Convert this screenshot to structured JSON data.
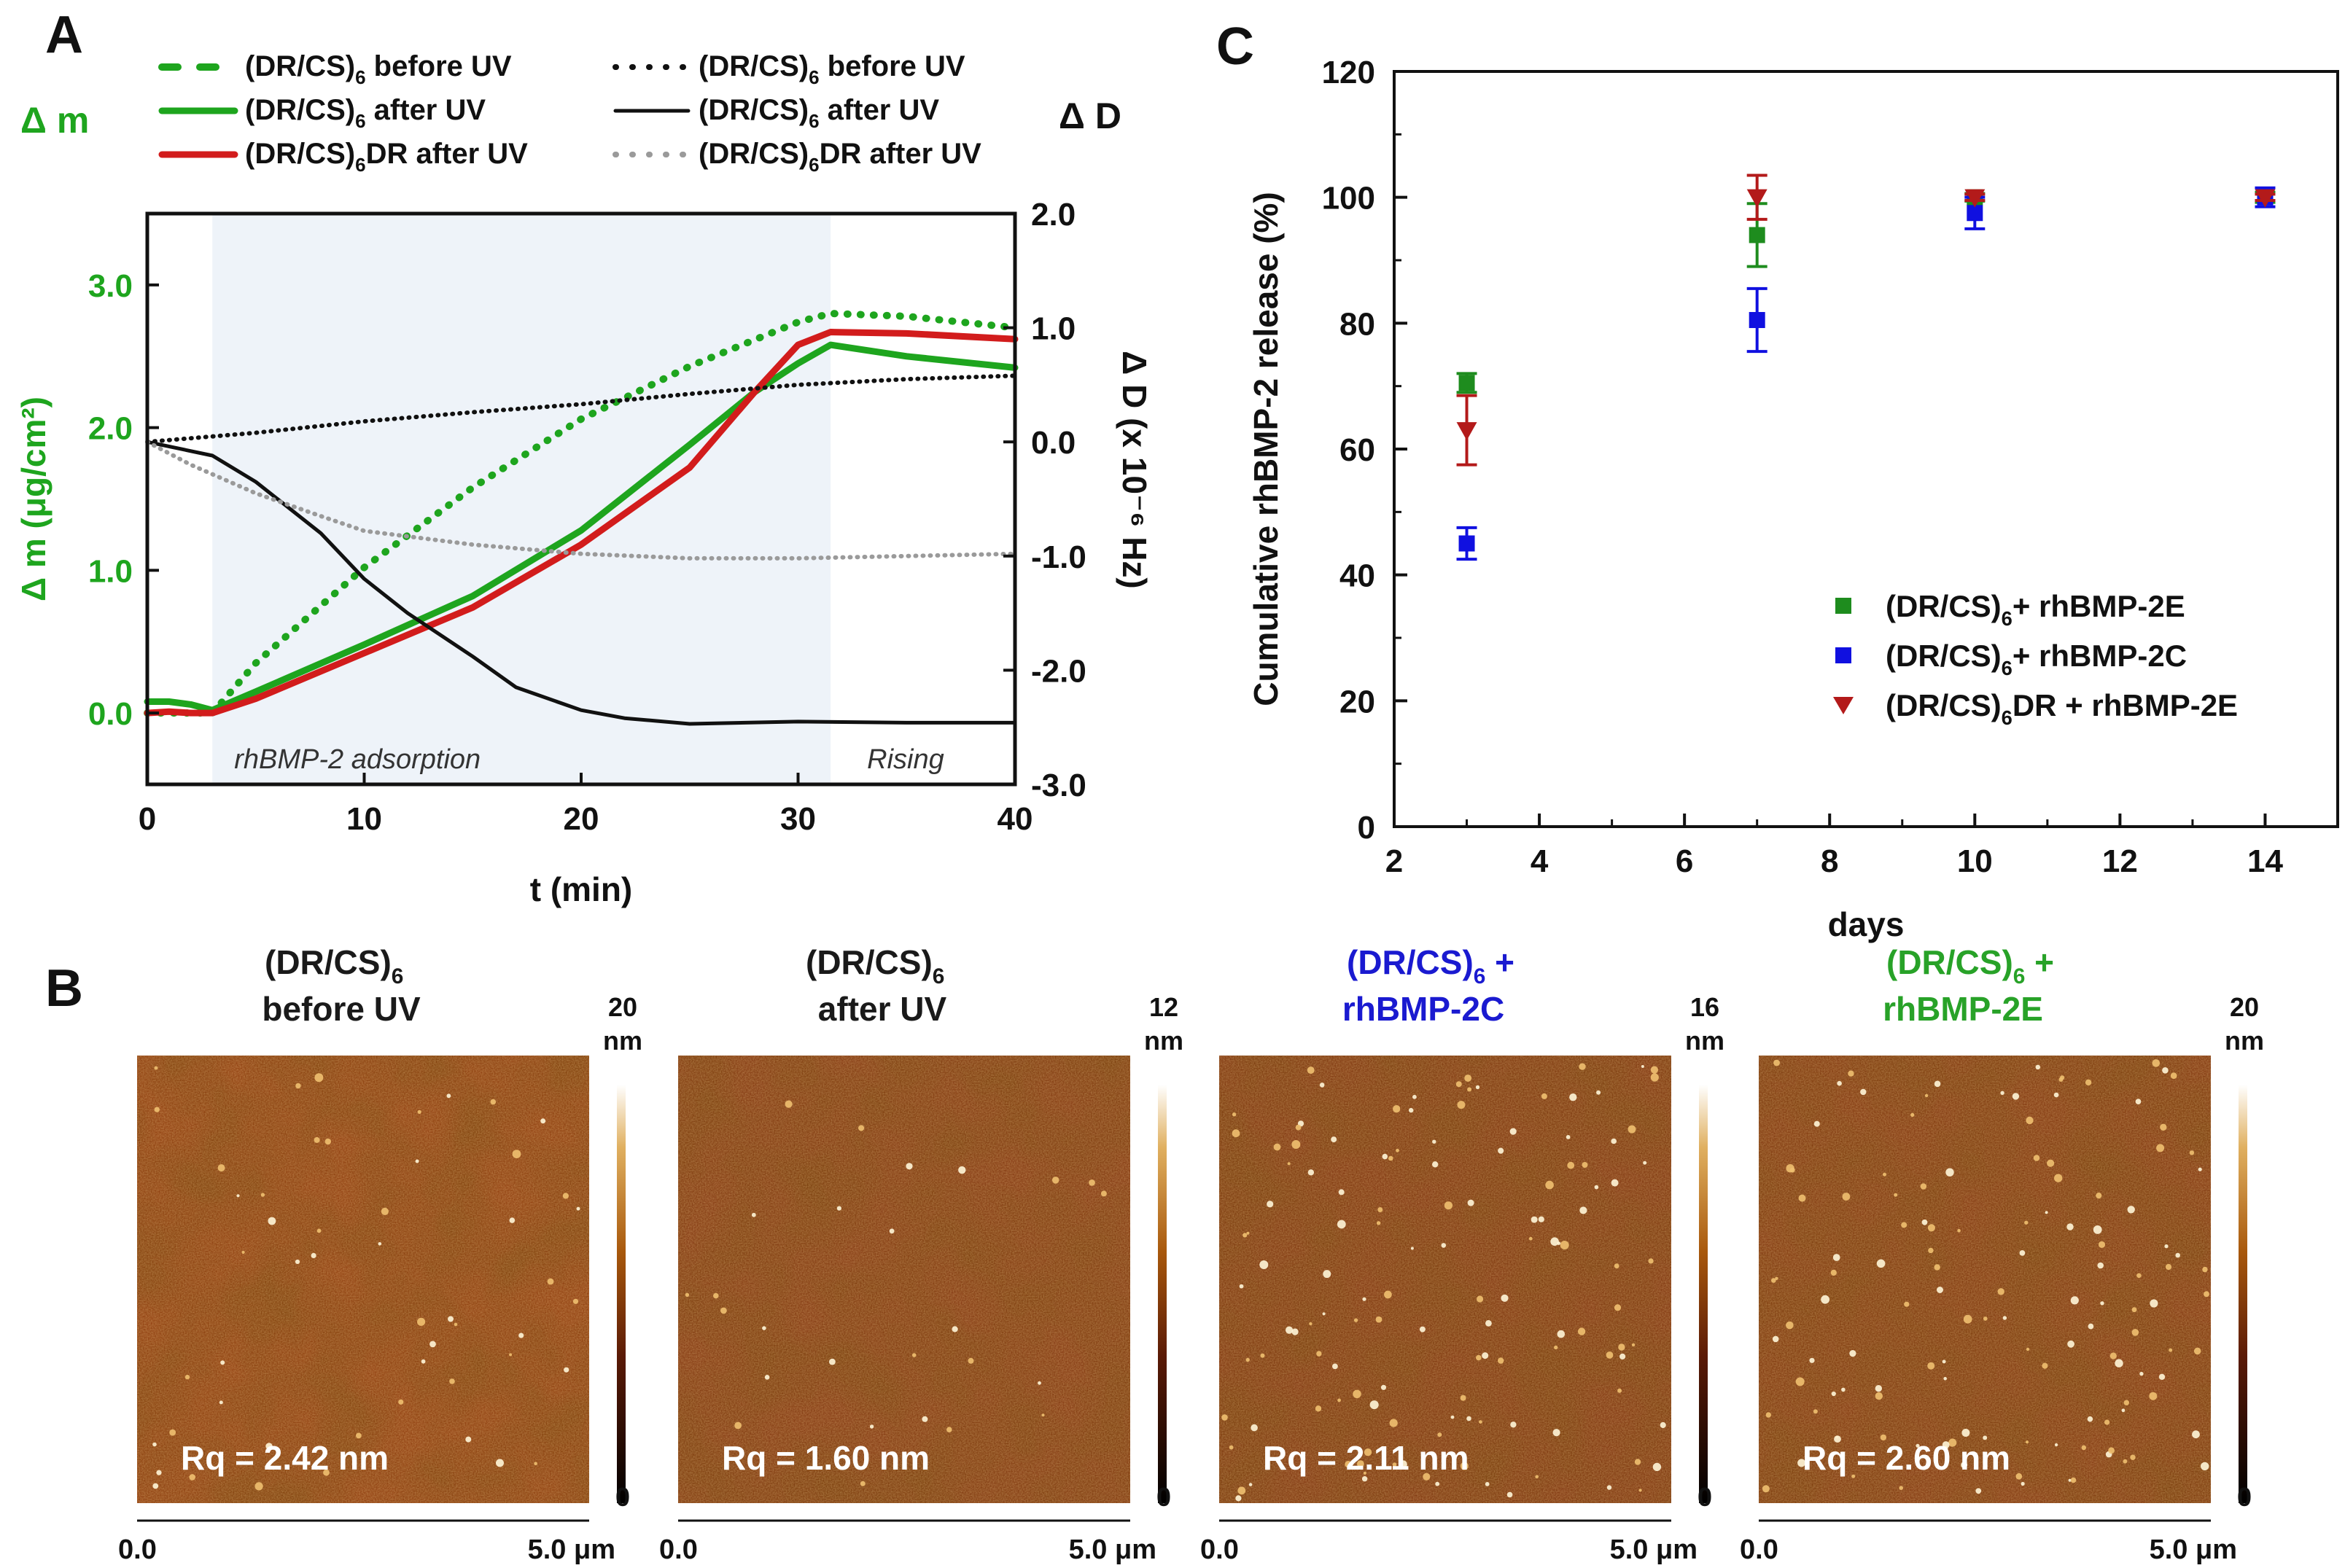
{
  "panels": {
    "A": "A",
    "B": "B",
    "C": "C"
  },
  "colors": {
    "green": "#1ea51e",
    "red": "#d21c1c",
    "black": "#111111",
    "gray": "#9a9a9a",
    "blue": "#1010e0",
    "darkred": "#b31a1a",
    "shade": "#eef3f9"
  },
  "chart_data": [
    {
      "id": "A",
      "type": "line",
      "title": "",
      "xlabel": "t (min)",
      "ylabel_left": "Δ m (μg/cm²)",
      "ylabel_right": "Δ D (x 10⁻⁶ Hz)",
      "left_header": "Δ m",
      "right_header": "Δ D",
      "xlim": [
        0,
        40
      ],
      "ylim_left": [
        -0.5,
        3.5
      ],
      "ylim_right": [
        -3.0,
        2.0
      ],
      "xticks": [
        "0",
        "10",
        "20",
        "30",
        "40"
      ],
      "yticks_left": [
        "0.0",
        "1.0",
        "2.0",
        "3.0"
      ],
      "yticks_right": [
        "2.0",
        "1.0",
        "0.0",
        "-1.0",
        "-2.0",
        "-3.0"
      ],
      "regions": [
        {
          "label": "rhBMP-2 adsorption",
          "x": [
            3,
            31.5
          ]
        },
        {
          "label": "Rising",
          "x": [
            31.5,
            40
          ]
        }
      ],
      "series": [
        {
          "name": "(DR/CS)",
          "sub": "6",
          "suffix": " before UV",
          "axis": "left",
          "style": "dash",
          "color": "#1ea51e",
          "x": [
            0,
            2,
            3,
            5,
            10,
            15,
            20,
            25,
            30,
            31.5,
            35,
            40
          ],
          "y": [
            0.0,
            0.0,
            0.0,
            0.35,
            1.02,
            1.58,
            2.06,
            2.43,
            2.74,
            2.8,
            2.78,
            2.7
          ]
        },
        {
          "name": "(DR/CS)",
          "sub": "6",
          "suffix": " after UV",
          "axis": "left",
          "style": "solid",
          "color": "#1ea51e",
          "x": [
            0,
            1,
            2,
            3,
            5,
            10,
            15,
            20,
            25,
            28,
            30,
            31.5,
            35,
            40
          ],
          "y": [
            0.08,
            0.08,
            0.06,
            0.02,
            0.15,
            0.48,
            0.82,
            1.28,
            1.88,
            2.25,
            2.45,
            2.58,
            2.5,
            2.42
          ]
        },
        {
          "name": "(DR/CS)",
          "sub": "6",
          "suffix": "DR after UV",
          "axis": "left",
          "style": "solid",
          "color": "#d21c1c",
          "x": [
            0,
            1,
            2,
            3,
            5,
            10,
            15,
            20,
            25,
            28,
            30,
            31.5,
            35,
            40
          ],
          "y": [
            0.0,
            0.01,
            0.0,
            0.0,
            0.1,
            0.42,
            0.74,
            1.18,
            1.72,
            2.25,
            2.58,
            2.67,
            2.66,
            2.62
          ]
        },
        {
          "name": "(DR/CS)",
          "sub": "6",
          "suffix": " before UV",
          "axis": "right",
          "style": "dot",
          "color": "#111111",
          "x": [
            0,
            5,
            10,
            15,
            20,
            25,
            30,
            35,
            40
          ],
          "y": [
            0.0,
            0.08,
            0.18,
            0.26,
            0.33,
            0.42,
            0.5,
            0.55,
            0.58
          ]
        },
        {
          "name": "(DR/CS)",
          "sub": "6",
          "suffix": " after UV",
          "axis": "right",
          "style": "solid",
          "color": "#111111",
          "x": [
            0,
            3,
            5,
            8,
            10,
            12,
            15,
            17,
            20,
            22,
            25,
            30,
            35,
            40
          ],
          "y": [
            0.0,
            -0.12,
            -0.35,
            -0.8,
            -1.2,
            -1.5,
            -1.88,
            -2.15,
            -2.35,
            -2.42,
            -2.47,
            -2.45,
            -2.46,
            -2.46
          ]
        },
        {
          "name": "(DR/CS)",
          "sub": "6",
          "suffix": "DR after UV",
          "axis": "right",
          "style": "dot",
          "color": "#9a9a9a",
          "x": [
            0,
            2,
            5,
            8,
            10,
            15,
            20,
            25,
            30,
            35,
            40
          ],
          "y": [
            0.0,
            -0.2,
            -0.45,
            -0.65,
            -0.78,
            -0.9,
            -0.98,
            -1.02,
            -1.02,
            -1.0,
            -0.98
          ]
        }
      ]
    },
    {
      "id": "C",
      "type": "scatter",
      "title": "",
      "xlabel": "days",
      "ylabel": "Cumulative rhBMP-2 release (%)",
      "xlim": [
        2,
        15
      ],
      "ylim": [
        0,
        120
      ],
      "xticks": [
        "2",
        "4",
        "6",
        "8",
        "10",
        "12",
        "14"
      ],
      "yticks": [
        "0",
        "20",
        "40",
        "60",
        "80",
        "100",
        "120"
      ],
      "series": [
        {
          "name": "(DR/CS)",
          "sub": "6",
          "suffix": "+ rhBMP-2E",
          "marker": "square",
          "color": "#1e8c1e",
          "x": [
            3,
            7,
            10,
            14
          ],
          "y": [
            70.5,
            94,
            100,
            100
          ],
          "err": [
            1.5,
            5,
            0.6,
            0.8
          ]
        },
        {
          "name": "(DR/CS)",
          "sub": "6",
          "suffix": "+ rhBMP-2C",
          "marker": "square",
          "color": "#1010e0",
          "x": [
            3,
            7,
            10,
            14
          ],
          "y": [
            45,
            80.5,
            97.5,
            100
          ],
          "err": [
            2.5,
            5,
            2.5,
            1.5
          ]
        },
        {
          "name": "(DR/CS)",
          "sub": "6",
          "suffix": "DR + rhBMP-2E",
          "marker": "triangle-down",
          "color": "#b31a1a",
          "x": [
            3,
            7,
            10,
            14
          ],
          "y": [
            63,
            100,
            100,
            100
          ],
          "err": [
            5.5,
            3.5,
            0.5,
            0.5
          ]
        }
      ]
    }
  ],
  "afm": [
    {
      "title": "(DR/CS)",
      "sub": "6",
      "line2": "before UV",
      "title_color": "#1a1a1a",
      "scale_max": "20",
      "unit": "nm",
      "scale_min": "0",
      "rq": "Rq = 2.42 nm",
      "x_start": "0.0",
      "x_end": "5.0 μm",
      "tone": "#8b3708",
      "spot_density": 0.02
    },
    {
      "title": "(DR/CS)",
      "sub": "6",
      "line2": "after UV",
      "title_color": "#1a1a1a",
      "scale_max": "12",
      "unit": "nm",
      "scale_min": "0",
      "rq": "Rq = 1.60 nm",
      "x_start": "0.0",
      "x_end": "5.0 μm",
      "tone": "#7e310a",
      "spot_density": 0.01
    },
    {
      "title": "(DR/CS)",
      "sub": "6",
      "title_suffix": " +",
      "line2": "rhBMP-2C",
      "title_color": "#1a1ad0",
      "scale_max": "16",
      "unit": "nm",
      "scale_min": "0",
      "rq": "Rq = 2.11 nm",
      "x_start": "0.0",
      "x_end": "5.0 μm",
      "tone": "#7a2e08",
      "spot_density": 0.05
    },
    {
      "title": "(DR/CS)",
      "sub": "6",
      "title_suffix": " +",
      "line2": "rhBMP-2E",
      "title_color": "#28a228",
      "scale_max": "20",
      "unit": "nm",
      "scale_min": "0",
      "rq": "Rq = 2.60 nm",
      "x_start": "0.0",
      "x_end": "5.0 μm",
      "tone": "#7c3008",
      "spot_density": 0.05
    }
  ]
}
